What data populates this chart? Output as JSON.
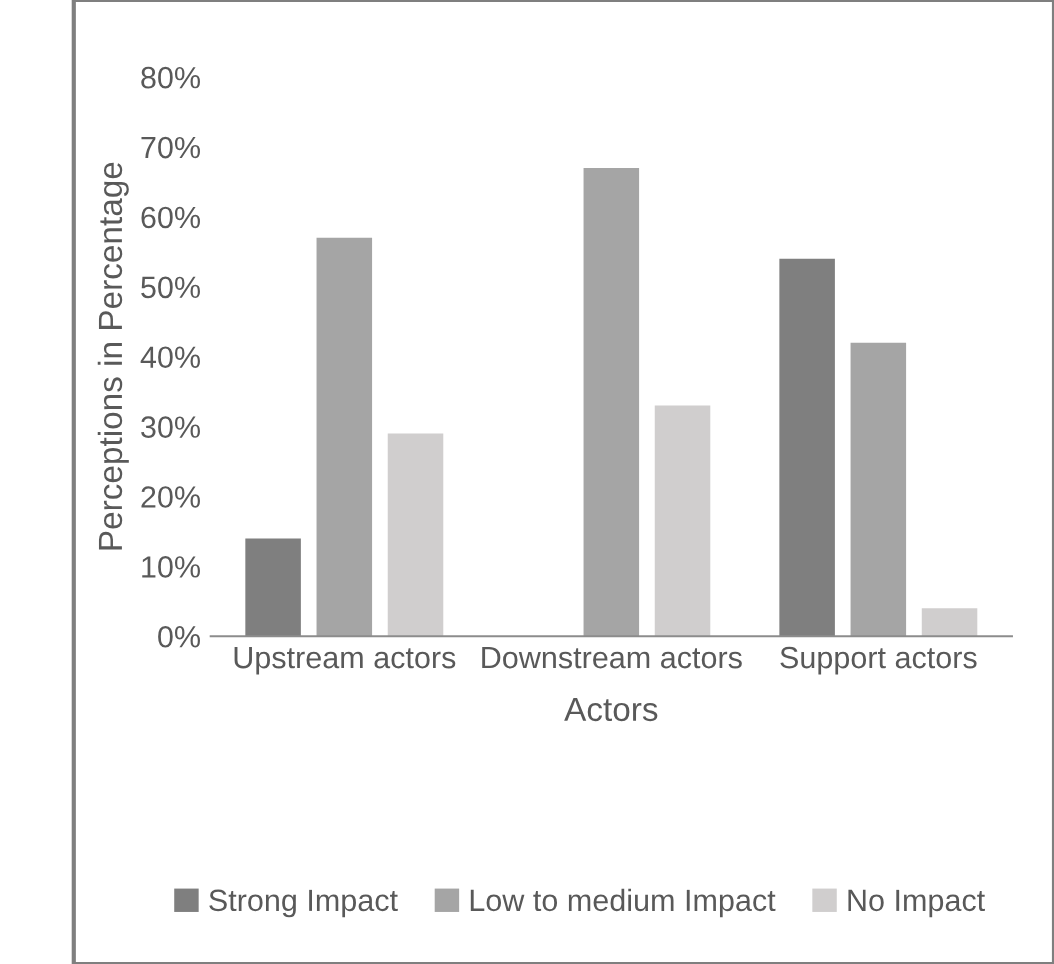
{
  "chart_data": {
    "type": "bar",
    "xlabel": "Actors",
    "ylabel": "Perceptions in Percentage",
    "categories": [
      "Upstream actors",
      "Downstream actors",
      "Support actors"
    ],
    "series": [
      {
        "name": "Strong Impact",
        "color": "#7f7f7f",
        "values": [
          14,
          0,
          54
        ]
      },
      {
        "name": "Low to medium Impact",
        "color": "#a5a5a5",
        "values": [
          57,
          67,
          42
        ]
      },
      {
        "name": "No Impact",
        "color": "#d0cece",
        "values": [
          29,
          33,
          4
        ]
      }
    ],
    "ylim": [
      0,
      80
    ],
    "yticks": [
      {
        "value": 0,
        "label": "0%"
      },
      {
        "value": 10,
        "label": "10%"
      },
      {
        "value": 20,
        "label": "20%"
      },
      {
        "value": 30,
        "label": "30%"
      },
      {
        "value": 40,
        "label": "40%"
      },
      {
        "value": 50,
        "label": "50%"
      },
      {
        "value": 60,
        "label": "60%"
      },
      {
        "value": 70,
        "label": "70%"
      },
      {
        "value": 80,
        "label": "80%"
      }
    ],
    "grid": false,
    "legend": "bottom"
  }
}
